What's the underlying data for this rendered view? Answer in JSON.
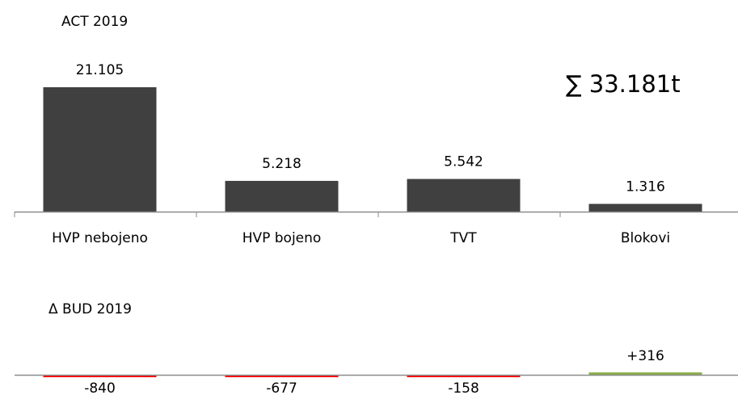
{
  "chart_data": [
    {
      "type": "bar",
      "title": "ACT 2019",
      "categories": [
        "HVP nebojeno",
        "HVP bojeno",
        "TVT",
        "Blokovi"
      ],
      "values": [
        21105,
        5218,
        5542,
        1316
      ],
      "value_labels": [
        "21.105",
        "5.218",
        "5.542",
        "1.316"
      ],
      "annotation": "∑ 33.181t",
      "bar_color": "#404040",
      "grid": false,
      "legend": "none"
    },
    {
      "type": "bar",
      "title": "Δ BUD 2019",
      "categories": [
        "HVP nebojeno",
        "HVP bojeno",
        "TVT",
        "Blokovi"
      ],
      "values": [
        -840,
        -677,
        -158,
        316
      ],
      "value_labels": [
        "-840",
        "-677",
        "-158",
        "+316"
      ],
      "negative_color": "#ff0000",
      "positive_color": "#8db04a",
      "grid": false,
      "legend": "none"
    }
  ]
}
